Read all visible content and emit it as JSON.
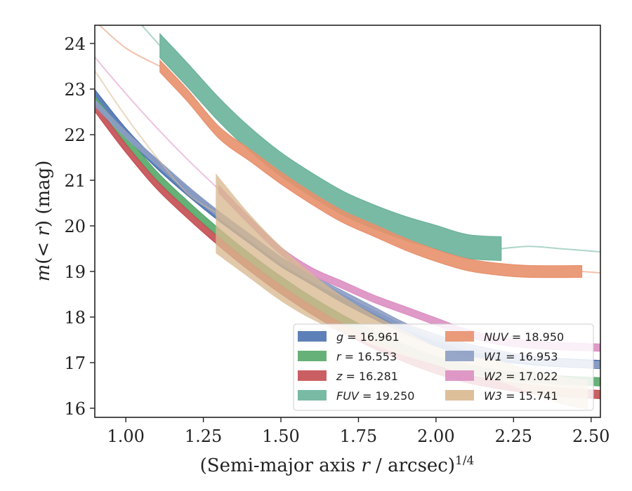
{
  "chart_data": {
    "type": "line",
    "title": "",
    "xlabel": "(Semi-major axis r / arcsec)",
    "xlabel_pre": "(Semi-major axis ",
    "xlabel_var": "r",
    "xlabel_post": " / arcsec)",
    "xlabel_sup": "1/4",
    "ylabel": "m(< r) (mag)",
    "ylabel_pre": "m",
    "ylabel_mid": "(< ",
    "ylabel_var": "r",
    "ylabel_post": ") (mag)",
    "xlim": [
      0.9,
      2.53
    ],
    "ylim": [
      24.4,
      15.8
    ],
    "y_inverted": true,
    "grid": false,
    "legend_position": "lower-right",
    "xticks": [
      "1.00",
      "1.25",
      "1.50",
      "1.75",
      "2.00",
      "2.25",
      "2.50"
    ],
    "xtick_values": [
      1.0,
      1.25,
      1.5,
      1.75,
      2.0,
      2.25,
      2.5
    ],
    "yticks": [
      "16",
      "17",
      "18",
      "19",
      "20",
      "21",
      "22",
      "23",
      "24"
    ],
    "ytick_values": [
      16,
      17,
      18,
      19,
      20,
      21,
      22,
      23,
      24
    ],
    "series": [
      {
        "name": "g = 16.961",
        "band": "g",
        "value": "16.961",
        "color": "#4c72b0",
        "x": [
          0.9,
          1.0,
          1.1,
          1.2,
          1.3,
          1.4,
          1.5,
          1.6,
          1.7,
          1.8,
          1.9,
          2.0,
          2.1,
          2.2,
          2.3,
          2.4,
          2.53
        ],
        "y": [
          22.9,
          22.05,
          21.35,
          20.75,
          20.2,
          19.7,
          19.2,
          18.8,
          18.4,
          18.05,
          17.72,
          17.45,
          17.25,
          17.12,
          17.05,
          17.0,
          16.96
        ],
        "half_width": 0.09,
        "faded_before": 0.0,
        "faded_after": 3.0
      },
      {
        "name": "r = 16.553",
        "band": "r",
        "value": "16.553",
        "color": "#55a868",
        "x": [
          0.9,
          1.0,
          1.1,
          1.2,
          1.3,
          1.4,
          1.5,
          1.6,
          1.7,
          1.8,
          1.9,
          2.0,
          2.1,
          2.2,
          2.3,
          2.4,
          2.53
        ],
        "y": [
          22.75,
          21.9,
          21.1,
          20.45,
          19.85,
          19.3,
          18.8,
          18.35,
          17.95,
          17.6,
          17.3,
          17.05,
          16.87,
          16.75,
          16.67,
          16.62,
          16.58
        ],
        "half_width": 0.09,
        "faded_before": 0.0,
        "faded_after": 3.0
      },
      {
        "name": "z = 16.281",
        "band": "z",
        "value": "16.281",
        "color": "#c44e52",
        "x": [
          0.9,
          1.0,
          1.1,
          1.2,
          1.3,
          1.4,
          1.5,
          1.6,
          1.7,
          1.8,
          1.9,
          2.0,
          2.1,
          2.2,
          2.3,
          2.4,
          2.53
        ],
        "y": [
          22.6,
          21.7,
          20.9,
          20.25,
          19.65,
          19.1,
          18.6,
          18.15,
          17.75,
          17.4,
          17.1,
          16.85,
          16.65,
          16.52,
          16.42,
          16.35,
          16.3
        ],
        "half_width": 0.09,
        "faded_before": 0.0,
        "faded_after": 3.0
      },
      {
        "name": "FUV = 19.250",
        "band": "FUV",
        "value": "19.250",
        "color": "#6ab29a",
        "x": [
          0.9,
          1.0,
          1.11,
          1.2,
          1.3,
          1.4,
          1.5,
          1.6,
          1.7,
          1.8,
          1.9,
          2.0,
          2.1,
          2.21,
          2.3,
          2.4,
          2.53
        ],
        "y": [
          25.6,
          24.8,
          23.95,
          23.3,
          22.55,
          21.9,
          21.35,
          20.9,
          20.5,
          20.2,
          19.95,
          19.75,
          19.55,
          19.5,
          19.55,
          19.5,
          19.43
        ],
        "half_width": 0.26,
        "faded_before": 1.11,
        "faded_after": 2.21
      },
      {
        "name": "NUV = 18.950",
        "band": "NUV",
        "value": "18.950",
        "color": "#e8906c",
        "x": [
          0.9,
          1.0,
          1.11,
          1.2,
          1.3,
          1.4,
          1.5,
          1.6,
          1.7,
          1.8,
          1.9,
          2.0,
          2.1,
          2.2,
          2.3,
          2.47,
          2.53
        ],
        "y": [
          24.5,
          23.9,
          23.5,
          22.85,
          22.05,
          21.55,
          21.05,
          20.6,
          20.2,
          19.9,
          19.6,
          19.35,
          19.15,
          19.05,
          19.0,
          19.0,
          18.97
        ],
        "half_width": 0.13,
        "faded_before": 1.11,
        "faded_after": 2.47
      },
      {
        "name": "W1 = 16.953",
        "band": "W1",
        "value": "16.953",
        "color": "#8c9dc4",
        "x": [
          0.9,
          1.0,
          1.1,
          1.2,
          1.3,
          1.4,
          1.5,
          1.6,
          1.7,
          1.8,
          1.9,
          2.0,
          2.1,
          2.2,
          2.3,
          2.4,
          2.53
        ],
        "y": [
          22.7,
          22.0,
          21.4,
          20.8,
          20.25,
          19.75,
          19.25,
          18.85,
          18.5,
          18.15,
          17.8,
          17.55,
          17.35,
          17.2,
          17.07,
          17.0,
          16.95
        ],
        "half_width": 0.07,
        "faded_before": 0.0,
        "faded_after": 3.0
      },
      {
        "name": "W2 = 17.022",
        "band": "W2",
        "value": "17.022",
        "color": "#dc8fc2",
        "x": [
          0.9,
          1.0,
          1.1,
          1.2,
          1.3,
          1.4,
          1.5,
          1.6,
          1.7,
          1.8,
          1.9,
          2.0,
          2.1,
          2.2,
          2.3,
          2.4,
          2.53
        ],
        "y": [
          23.7,
          22.9,
          22.15,
          21.45,
          20.8,
          20.1,
          19.45,
          19.0,
          18.7,
          18.4,
          18.15,
          17.9,
          17.65,
          17.48,
          17.4,
          17.36,
          17.33
        ],
        "half_width": 0.08,
        "faded_before": 1.3,
        "faded_after": 3.0
      },
      {
        "name": "W3 = 15.741",
        "band": "W3",
        "value": "15.741",
        "color": "#d9b88f",
        "x": [
          0.9,
          1.0,
          1.1,
          1.2,
          1.29,
          1.4,
          1.5,
          1.6,
          1.7,
          1.8,
          1.9,
          2.0,
          2.1,
          2.2,
          2.3,
          2.4,
          2.49
        ],
        "y": [
          23.4,
          22.4,
          21.5,
          20.7,
          20.3,
          19.55,
          18.95,
          18.45,
          18.05,
          17.7,
          17.4,
          17.15,
          16.95,
          16.8,
          16.6,
          16.45,
          16.3
        ],
        "y_upper": [
          23.4,
          22.4,
          21.5,
          20.7,
          19.4,
          18.85,
          18.35,
          17.95,
          17.65,
          17.38,
          17.15,
          16.95,
          16.75,
          16.6,
          16.35,
          16.1,
          15.97
        ],
        "y_lower": [
          23.4,
          22.4,
          21.5,
          20.7,
          21.15,
          20.25,
          19.55,
          18.95,
          18.45,
          18.05,
          17.7,
          17.35,
          17.15,
          17.05,
          16.85,
          16.7,
          16.62
        ],
        "half_width": 0.0,
        "faded_before": 1.29,
        "faded_after": 2.49,
        "band_fill": true
      }
    ],
    "legend": {
      "col1": [
        {
          "band": "g",
          "value": "16.961",
          "color": "#4c72b0"
        },
        {
          "band": "r",
          "value": "16.553",
          "color": "#55a868"
        },
        {
          "band": "z",
          "value": "16.281",
          "color": "#c44e52"
        },
        {
          "band": "FUV",
          "value": "19.250",
          "color": "#6ab29a"
        }
      ],
      "col2": [
        {
          "band": "NUV",
          "value": "18.950",
          "color": "#e8906c"
        },
        {
          "band": "W1",
          "value": "16.953",
          "color": "#8c9dc4"
        },
        {
          "band": "W2",
          "value": "17.022",
          "color": "#dc8fc2"
        },
        {
          "band": "W3",
          "value": "15.741",
          "color": "#d9b88f"
        }
      ]
    }
  }
}
